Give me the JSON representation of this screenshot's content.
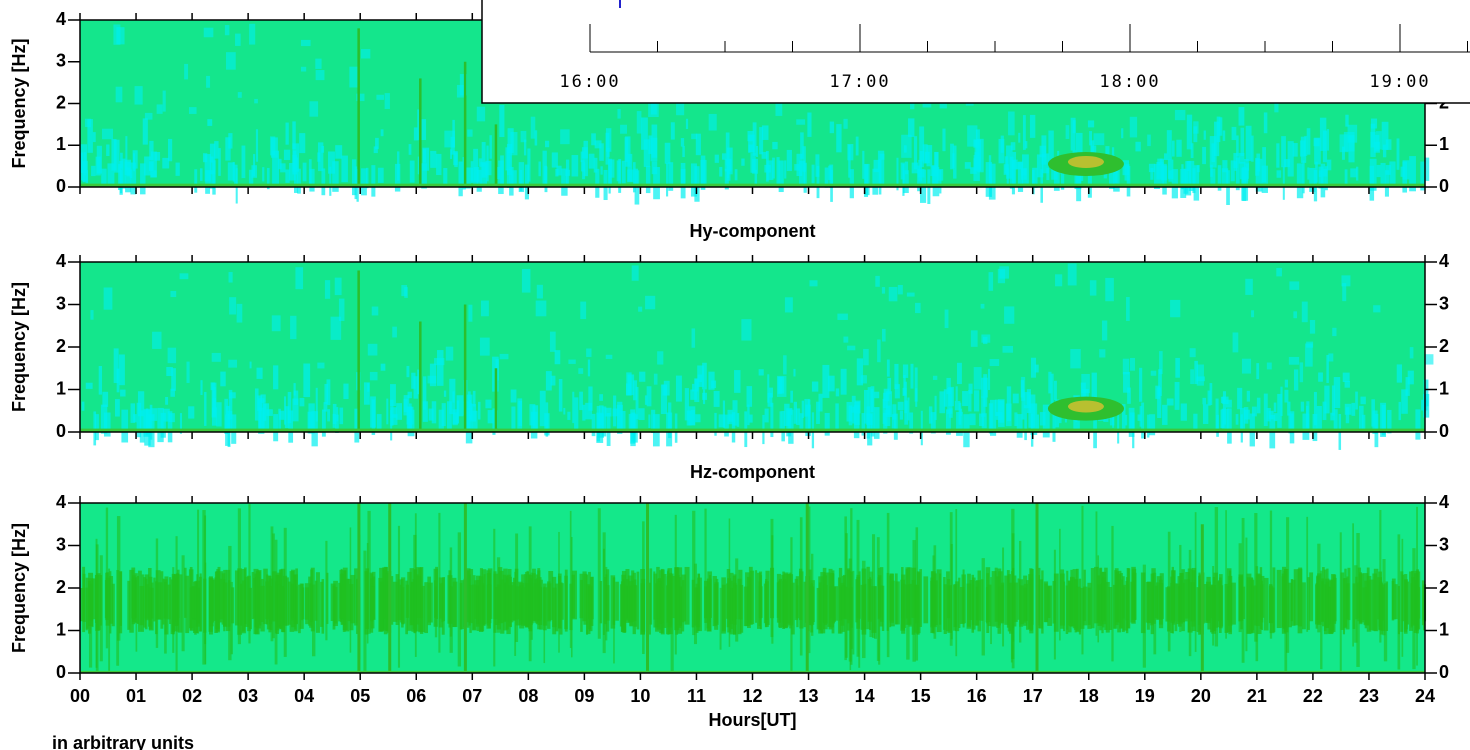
{
  "chart_data": [
    {
      "type": "spectrogram",
      "ylabel": "Frequency [Hz]",
      "xlim": [
        0,
        24
      ],
      "ylim": [
        0,
        4
      ],
      "yticks": [
        0,
        1,
        2,
        3,
        4
      ]
    },
    {
      "type": "spectrogram",
      "title": "Hy-component",
      "ylabel": "Frequency [Hz]",
      "xlim": [
        0,
        24
      ],
      "ylim": [
        0,
        4
      ],
      "yticks": [
        0,
        1,
        2,
        3,
        4
      ]
    },
    {
      "type": "spectrogram",
      "title": "Hz-component",
      "ylabel": "Frequency [Hz]",
      "xlabel": "Hours[UT]",
      "xlim": [
        0,
        24
      ],
      "ylim": [
        0,
        4
      ],
      "yticks": [
        0,
        1,
        2,
        3,
        4
      ],
      "xticks": [
        {
          "value": 0,
          "label": "00"
        },
        {
          "value": 1,
          "label": "01"
        },
        {
          "value": 2,
          "label": "02"
        },
        {
          "value": 3,
          "label": "03"
        },
        {
          "value": 4,
          "label": "04"
        },
        {
          "value": 5,
          "label": "05"
        },
        {
          "value": 6,
          "label": "06"
        },
        {
          "value": 7,
          "label": "07"
        },
        {
          "value": 8,
          "label": "08"
        },
        {
          "value": 9,
          "label": "09"
        },
        {
          "value": 10,
          "label": "10"
        },
        {
          "value": 11,
          "label": "11"
        },
        {
          "value": 12,
          "label": "12"
        },
        {
          "value": 13,
          "label": "13"
        },
        {
          "value": 14,
          "label": "14"
        },
        {
          "value": 15,
          "label": "15"
        },
        {
          "value": 16,
          "label": "16"
        },
        {
          "value": 17,
          "label": "17"
        },
        {
          "value": 18,
          "label": "18"
        },
        {
          "value": 19,
          "label": "19"
        },
        {
          "value": 20,
          "label": "20"
        },
        {
          "value": 21,
          "label": "21"
        },
        {
          "value": 22,
          "label": "22"
        },
        {
          "value": 23,
          "label": "23"
        },
        {
          "value": 24,
          "label": "24"
        }
      ]
    }
  ],
  "overlay_axis": {
    "labels": [
      "16:00",
      "17:00",
      "18:00",
      "19:00"
    ]
  },
  "footer": "in arbitrary units"
}
